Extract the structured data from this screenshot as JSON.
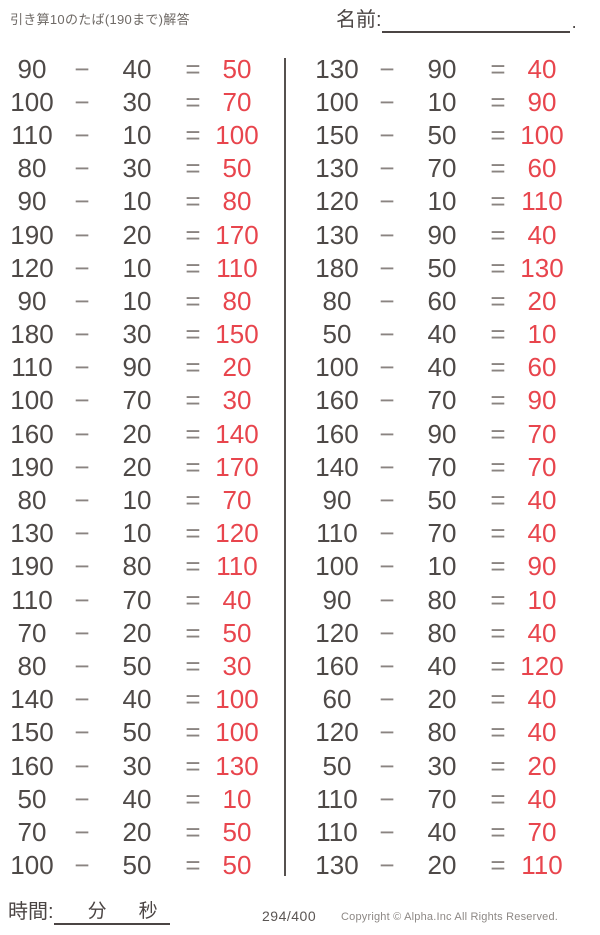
{
  "header": {
    "title": "引き算10のたば(190まで)解答",
    "name_label": "名前:",
    "name_period": "."
  },
  "problems": {
    "minus_symbol": "−",
    "equals_symbol": "=",
    "left": [
      {
        "a": "90",
        "b": "40",
        "ans": "50"
      },
      {
        "a": "100",
        "b": "30",
        "ans": "70"
      },
      {
        "a": "110",
        "b": "10",
        "ans": "100"
      },
      {
        "a": "80",
        "b": "30",
        "ans": "50"
      },
      {
        "a": "90",
        "b": "10",
        "ans": "80"
      },
      {
        "a": "190",
        "b": "20",
        "ans": "170"
      },
      {
        "a": "120",
        "b": "10",
        "ans": "110"
      },
      {
        "a": "90",
        "b": "10",
        "ans": "80"
      },
      {
        "a": "180",
        "b": "30",
        "ans": "150"
      },
      {
        "a": "110",
        "b": "90",
        "ans": "20"
      },
      {
        "a": "100",
        "b": "70",
        "ans": "30"
      },
      {
        "a": "160",
        "b": "20",
        "ans": "140"
      },
      {
        "a": "190",
        "b": "20",
        "ans": "170"
      },
      {
        "a": "80",
        "b": "10",
        "ans": "70"
      },
      {
        "a": "130",
        "b": "10",
        "ans": "120"
      },
      {
        "a": "190",
        "b": "80",
        "ans": "110"
      },
      {
        "a": "110",
        "b": "70",
        "ans": "40"
      },
      {
        "a": "70",
        "b": "20",
        "ans": "50"
      },
      {
        "a": "80",
        "b": "50",
        "ans": "30"
      },
      {
        "a": "140",
        "b": "40",
        "ans": "100"
      },
      {
        "a": "150",
        "b": "50",
        "ans": "100"
      },
      {
        "a": "160",
        "b": "30",
        "ans": "130"
      },
      {
        "a": "50",
        "b": "40",
        "ans": "10"
      },
      {
        "a": "70",
        "b": "20",
        "ans": "50"
      },
      {
        "a": "100",
        "b": "50",
        "ans": "50"
      }
    ],
    "right": [
      {
        "a": "130",
        "b": "90",
        "ans": "40"
      },
      {
        "a": "100",
        "b": "10",
        "ans": "90"
      },
      {
        "a": "150",
        "b": "50",
        "ans": "100"
      },
      {
        "a": "130",
        "b": "70",
        "ans": "60"
      },
      {
        "a": "120",
        "b": "10",
        "ans": "110"
      },
      {
        "a": "130",
        "b": "90",
        "ans": "40"
      },
      {
        "a": "180",
        "b": "50",
        "ans": "130"
      },
      {
        "a": "80",
        "b": "60",
        "ans": "20"
      },
      {
        "a": "50",
        "b": "40",
        "ans": "10"
      },
      {
        "a": "100",
        "b": "40",
        "ans": "60"
      },
      {
        "a": "160",
        "b": "70",
        "ans": "90"
      },
      {
        "a": "160",
        "b": "90",
        "ans": "70"
      },
      {
        "a": "140",
        "b": "70",
        "ans": "70"
      },
      {
        "a": "90",
        "b": "50",
        "ans": "40"
      },
      {
        "a": "110",
        "b": "70",
        "ans": "40"
      },
      {
        "a": "100",
        "b": "10",
        "ans": "90"
      },
      {
        "a": "90",
        "b": "80",
        "ans": "10"
      },
      {
        "a": "120",
        "b": "80",
        "ans": "40"
      },
      {
        "a": "160",
        "b": "40",
        "ans": "120"
      },
      {
        "a": "60",
        "b": "20",
        "ans": "40"
      },
      {
        "a": "120",
        "b": "80",
        "ans": "40"
      },
      {
        "a": "50",
        "b": "30",
        "ans": "20"
      },
      {
        "a": "110",
        "b": "70",
        "ans": "40"
      },
      {
        "a": "110",
        "b": "40",
        "ans": "70"
      },
      {
        "a": "130",
        "b": "20",
        "ans": "110"
      }
    ]
  },
  "footer": {
    "time_label": "時間:",
    "minutes_label": "分",
    "seconds_label": "秒",
    "page": "294/400",
    "copyright": "Copyright ©  Alpha.Inc All Rights Reserved."
  },
  "colors": {
    "text": "#4e4947",
    "operator": "#8a8481",
    "answer_red": "#e8454d",
    "divider": "#56514f"
  }
}
